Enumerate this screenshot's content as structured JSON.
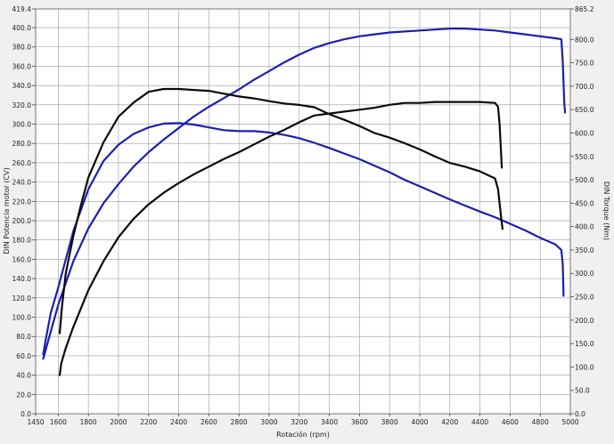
{
  "chart_data": {
    "type": "line",
    "title": "",
    "xlabel": "Rotación (rpm)",
    "ylabel_left": "DIN Potencia motor (CV)",
    "ylabel_right": "DIN Torque (Nm)",
    "xlim": [
      1450,
      5000
    ],
    "ylim_left": [
      0,
      419.4
    ],
    "ylim_right": [
      0,
      865.2
    ],
    "x_ticks": [
      1450,
      1600,
      1800,
      2000,
      2200,
      2400,
      2600,
      2800,
      3000,
      3200,
      3400,
      3600,
      3800,
      4000,
      4200,
      4400,
      4600,
      4800,
      5000
    ],
    "x_tick_labels": [
      "1450",
      "1600",
      "1800",
      "2000",
      "2200",
      "2400",
      "2600",
      "2800",
      "3000",
      "3200",
      "3400",
      "3600",
      "3800",
      "4000",
      "4200",
      "4400",
      "4600",
      "4800",
      "5000"
    ],
    "y_left_ticks": [
      0,
      20,
      40,
      60,
      80,
      100,
      120,
      140,
      160,
      180,
      200,
      220,
      240,
      260,
      280,
      300,
      320,
      340,
      360,
      380,
      400,
      419.4
    ],
    "y_left_tick_labels": [
      "0.0",
      "20.0",
      "40.0",
      "60.0",
      "80.0",
      "100.0",
      "120.0",
      "140.0",
      "160.0",
      "180.0",
      "200.0",
      "220.0",
      "240.0",
      "260.0",
      "280.0",
      "300.0",
      "320.0",
      "340.0",
      "360.0",
      "380.0",
      "400.0",
      "419.4"
    ],
    "y_right_ticks": [
      0,
      50,
      100,
      150,
      200,
      250,
      300,
      350,
      400,
      450,
      500,
      550,
      600,
      650,
      700,
      750,
      800,
      865.2
    ],
    "y_right_tick_labels": [
      "0.0",
      "50.0",
      "100.0",
      "150.0",
      "200.0",
      "250.0",
      "300.0",
      "350.0",
      "400.0",
      "450.0",
      "500.0",
      "550.0",
      "600.0",
      "650.0",
      "700.0",
      "750.0",
      "800.0",
      "865.2"
    ],
    "grid": true,
    "series": [
      {
        "axis": "left",
        "color": "#1b1fae",
        "points": [
          [
            1500,
            57
          ],
          [
            1550,
            85
          ],
          [
            1600,
            113
          ],
          [
            1700,
            158
          ],
          [
            1800,
            192
          ],
          [
            1900,
            218
          ],
          [
            2000,
            238
          ],
          [
            2100,
            256
          ],
          [
            2200,
            271
          ],
          [
            2300,
            284
          ],
          [
            2400,
            296
          ],
          [
            2500,
            308
          ],
          [
            2600,
            318
          ],
          [
            2700,
            327
          ],
          [
            2800,
            336
          ],
          [
            2900,
            346
          ],
          [
            3000,
            355
          ],
          [
            3100,
            364
          ],
          [
            3200,
            372
          ],
          [
            3300,
            379
          ],
          [
            3400,
            384
          ],
          [
            3500,
            388
          ],
          [
            3600,
            391
          ],
          [
            3700,
            393
          ],
          [
            3800,
            395
          ],
          [
            3900,
            396
          ],
          [
            4000,
            397
          ],
          [
            4100,
            398
          ],
          [
            4200,
            399
          ],
          [
            4300,
            399
          ],
          [
            4400,
            398
          ],
          [
            4500,
            397
          ],
          [
            4600,
            395
          ],
          [
            4700,
            393
          ],
          [
            4800,
            391
          ],
          [
            4900,
            389
          ],
          [
            4940,
            388
          ],
          [
            4950,
            365
          ],
          [
            4960,
            322
          ],
          [
            4965,
            312
          ]
        ]
      },
      {
        "axis": "right",
        "color": "#1b1fae",
        "points": [
          [
            1500,
            127
          ],
          [
            1515,
            155
          ],
          [
            1550,
            215
          ],
          [
            1600,
            270
          ],
          [
            1650,
            330
          ],
          [
            1700,
            390
          ],
          [
            1750,
            435
          ],
          [
            1800,
            480
          ],
          [
            1900,
            540
          ],
          [
            2000,
            575
          ],
          [
            2100,
            598
          ],
          [
            2200,
            612
          ],
          [
            2300,
            620
          ],
          [
            2400,
            621
          ],
          [
            2500,
            618
          ],
          [
            2600,
            612
          ],
          [
            2700,
            606
          ],
          [
            2800,
            604
          ],
          [
            2900,
            604
          ],
          [
            3000,
            601
          ],
          [
            3100,
            596
          ],
          [
            3200,
            589
          ],
          [
            3300,
            579
          ],
          [
            3400,
            568
          ],
          [
            3500,
            556
          ],
          [
            3600,
            544
          ],
          [
            3700,
            530
          ],
          [
            3800,
            516
          ],
          [
            3900,
            500
          ],
          [
            4000,
            486
          ],
          [
            4100,
            472
          ],
          [
            4200,
            458
          ],
          [
            4300,
            445
          ],
          [
            4400,
            432
          ],
          [
            4500,
            420
          ],
          [
            4600,
            406
          ],
          [
            4700,
            392
          ],
          [
            4800,
            376
          ],
          [
            4900,
            362
          ],
          [
            4940,
            350
          ],
          [
            4950,
            320
          ],
          [
            4955,
            252
          ]
        ]
      },
      {
        "axis": "left",
        "color": "#0a0a0a",
        "points": [
          [
            1610,
            40
          ],
          [
            1620,
            52
          ],
          [
            1650,
            68
          ],
          [
            1700,
            90
          ],
          [
            1800,
            128
          ],
          [
            1900,
            158
          ],
          [
            2000,
            183
          ],
          [
            2100,
            202
          ],
          [
            2200,
            217
          ],
          [
            2300,
            229
          ],
          [
            2400,
            239
          ],
          [
            2500,
            248
          ],
          [
            2600,
            256
          ],
          [
            2700,
            264
          ],
          [
            2800,
            271
          ],
          [
            2900,
            279
          ],
          [
            3000,
            287
          ],
          [
            3100,
            294
          ],
          [
            3200,
            302
          ],
          [
            3300,
            309
          ],
          [
            3400,
            311
          ],
          [
            3500,
            313
          ],
          [
            3600,
            315
          ],
          [
            3700,
            317
          ],
          [
            3800,
            320
          ],
          [
            3900,
            322
          ],
          [
            4000,
            322
          ],
          [
            4100,
            323
          ],
          [
            4200,
            323
          ],
          [
            4300,
            323
          ],
          [
            4400,
            323
          ],
          [
            4500,
            322
          ],
          [
            4520,
            318
          ],
          [
            4530,
            300
          ],
          [
            4545,
            255
          ]
        ]
      },
      {
        "axis": "right",
        "color": "#0a0a0a",
        "points": [
          [
            1610,
            172
          ],
          [
            1625,
            230
          ],
          [
            1650,
            300
          ],
          [
            1700,
            380
          ],
          [
            1750,
            445
          ],
          [
            1800,
            505
          ],
          [
            1900,
            580
          ],
          [
            2000,
            635
          ],
          [
            2100,
            665
          ],
          [
            2200,
            688
          ],
          [
            2300,
            694
          ],
          [
            2400,
            694
          ],
          [
            2500,
            692
          ],
          [
            2600,
            690
          ],
          [
            2700,
            684
          ],
          [
            2800,
            678
          ],
          [
            2900,
            674
          ],
          [
            3000,
            668
          ],
          [
            3100,
            663
          ],
          [
            3200,
            660
          ],
          [
            3300,
            655
          ],
          [
            3400,
            640
          ],
          [
            3500,
            628
          ],
          [
            3600,
            615
          ],
          [
            3700,
            600
          ],
          [
            3800,
            590
          ],
          [
            3900,
            578
          ],
          [
            4000,
            565
          ],
          [
            4100,
            550
          ],
          [
            4200,
            536
          ],
          [
            4300,
            528
          ],
          [
            4400,
            518
          ],
          [
            4500,
            503
          ],
          [
            4520,
            480
          ],
          [
            4540,
            420
          ],
          [
            4550,
            395
          ]
        ]
      }
    ]
  }
}
